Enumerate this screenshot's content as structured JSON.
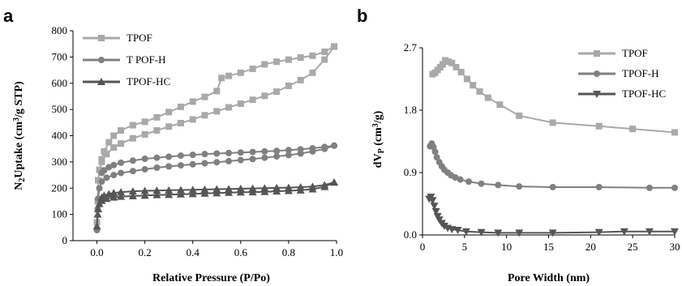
{
  "chart_data": [
    {
      "type": "line",
      "panel": "a",
      "xlabel": "Relative Pressure (P/Po)",
      "ylabel_parts": [
        "N",
        "2",
        "Uptake (cm",
        "3",
        "/g STP)"
      ],
      "xlim": [
        -0.1,
        1.0
      ],
      "ylim": [
        0,
        800
      ],
      "xticks": [
        "0.0",
        "0.2",
        "0.4",
        "0.6",
        "0.8",
        "1.0"
      ],
      "yticks": [
        "0",
        "100",
        "200",
        "300",
        "400",
        "500",
        "600",
        "700",
        "800"
      ],
      "legend_position": "top-left",
      "grid": false,
      "series": [
        {
          "name": "TPOF",
          "color": "#a9a9a9",
          "marker": "square",
          "adsorption": [
            [
              0.0,
              70
            ],
            [
              0.003,
              150
            ],
            [
              0.005,
              230
            ],
            [
              0.01,
              270
            ],
            [
              0.02,
              300
            ],
            [
              0.04,
              330
            ],
            [
              0.07,
              355
            ],
            [
              0.1,
              370
            ],
            [
              0.15,
              390
            ],
            [
              0.2,
              405
            ],
            [
              0.25,
              420
            ],
            [
              0.3,
              435
            ],
            [
              0.35,
              448
            ],
            [
              0.4,
              462
            ],
            [
              0.45,
              478
            ],
            [
              0.5,
              493
            ],
            [
              0.55,
              508
            ],
            [
              0.6,
              522
            ],
            [
              0.65,
              537
            ],
            [
              0.7,
              552
            ],
            [
              0.75,
              568
            ],
            [
              0.8,
              590
            ],
            [
              0.85,
              612
            ],
            [
              0.9,
              640
            ],
            [
              0.95,
              690
            ],
            [
              0.99,
              740
            ]
          ],
          "desorption": [
            [
              0.99,
              740
            ],
            [
              0.95,
              720
            ],
            [
              0.9,
              705
            ],
            [
              0.85,
              698
            ],
            [
              0.8,
              690
            ],
            [
              0.75,
              682
            ],
            [
              0.7,
              672
            ],
            [
              0.65,
              655
            ],
            [
              0.6,
              640
            ],
            [
              0.55,
              628
            ],
            [
              0.52,
              620
            ],
            [
              0.5,
              570
            ],
            [
              0.45,
              548
            ],
            [
              0.4,
              530
            ],
            [
              0.35,
              510
            ],
            [
              0.3,
              490
            ],
            [
              0.25,
              470
            ],
            [
              0.2,
              453
            ],
            [
              0.15,
              440
            ],
            [
              0.1,
              420
            ],
            [
              0.07,
              400
            ],
            [
              0.05,
              375
            ],
            [
              0.03,
              340
            ],
            [
              0.02,
              310
            ]
          ]
        },
        {
          "name": "T POF-H",
          "color": "#808080",
          "marker": "circle",
          "adsorption": [
            [
              0.0,
              40
            ],
            [
              0.003,
              120
            ],
            [
              0.005,
              160
            ],
            [
              0.01,
              200
            ],
            [
              0.02,
              225
            ],
            [
              0.04,
              240
            ],
            [
              0.07,
              250
            ],
            [
              0.1,
              258
            ],
            [
              0.15,
              265
            ],
            [
              0.2,
              272
            ],
            [
              0.25,
              278
            ],
            [
              0.3,
              283
            ],
            [
              0.35,
              287
            ],
            [
              0.4,
              291
            ],
            [
              0.45,
              295
            ],
            [
              0.5,
              299
            ],
            [
              0.55,
              303
            ],
            [
              0.6,
              307
            ],
            [
              0.65,
              311
            ],
            [
              0.7,
              316
            ],
            [
              0.75,
              321
            ],
            [
              0.8,
              326
            ],
            [
              0.85,
              332
            ],
            [
              0.9,
              340
            ],
            [
              0.95,
              350
            ],
            [
              0.99,
              362
            ]
          ],
          "desorption": [
            [
              0.99,
              362
            ],
            [
              0.95,
              357
            ],
            [
              0.9,
              352
            ],
            [
              0.85,
              348
            ],
            [
              0.8,
              345
            ],
            [
              0.75,
              342
            ],
            [
              0.7,
              340
            ],
            [
              0.65,
              338
            ],
            [
              0.6,
              336
            ],
            [
              0.55,
              334
            ],
            [
              0.5,
              332
            ],
            [
              0.45,
              330
            ],
            [
              0.4,
              327
            ],
            [
              0.35,
              324
            ],
            [
              0.3,
              320
            ],
            [
              0.25,
              316
            ],
            [
              0.2,
              312
            ],
            [
              0.15,
              305
            ],
            [
              0.1,
              297
            ],
            [
              0.07,
              288
            ],
            [
              0.05,
              280
            ],
            [
              0.03,
              268
            ],
            [
              0.02,
              258
            ]
          ]
        },
        {
          "name": "TPOF-HC",
          "color": "#555555",
          "marker": "triangle-up",
          "adsorption": [
            [
              0.0,
              55
            ],
            [
              0.003,
              100
            ],
            [
              0.005,
              120
            ],
            [
              0.01,
              140
            ],
            [
              0.02,
              152
            ],
            [
              0.04,
              160
            ],
            [
              0.07,
              165
            ],
            [
              0.1,
              168
            ],
            [
              0.15,
              170
            ],
            [
              0.2,
              172
            ],
            [
              0.25,
              174
            ],
            [
              0.3,
              175
            ],
            [
              0.35,
              177
            ],
            [
              0.4,
              178
            ],
            [
              0.45,
              180
            ],
            [
              0.5,
              181
            ],
            [
              0.55,
              183
            ],
            [
              0.6,
              184
            ],
            [
              0.65,
              185
            ],
            [
              0.7,
              186
            ],
            [
              0.75,
              188
            ],
            [
              0.8,
              190
            ],
            [
              0.85,
              192
            ],
            [
              0.9,
              196
            ],
            [
              0.95,
              205
            ],
            [
              0.99,
              222
            ]
          ],
          "desorption": [
            [
              0.99,
              222
            ],
            [
              0.95,
              212
            ],
            [
              0.9,
              206
            ],
            [
              0.85,
              204
            ],
            [
              0.8,
              202
            ],
            [
              0.75,
              201
            ],
            [
              0.7,
              200
            ],
            [
              0.65,
              199
            ],
            [
              0.6,
              198
            ],
            [
              0.55,
              197
            ],
            [
              0.5,
              196
            ],
            [
              0.45,
              195
            ],
            [
              0.4,
              194
            ],
            [
              0.35,
              193
            ],
            [
              0.3,
              192
            ],
            [
              0.25,
              191
            ],
            [
              0.2,
              190
            ],
            [
              0.15,
              188
            ],
            [
              0.1,
              185
            ],
            [
              0.07,
              182
            ],
            [
              0.05,
              178
            ],
            [
              0.03,
              172
            ],
            [
              0.02,
              165
            ]
          ]
        }
      ]
    },
    {
      "type": "line",
      "panel": "b",
      "xlabel": "Pore Width (nm)",
      "ylabel_parts": [
        "dV",
        "P",
        " (cm",
        "3",
        "/g)"
      ],
      "xlim": [
        0,
        30
      ],
      "ylim": [
        0,
        2.7
      ],
      "ytick_values": [
        0,
        0.9,
        1.8,
        2.7
      ],
      "xticks": [
        "0",
        "5",
        "10",
        "15",
        "20",
        "25",
        "30"
      ],
      "yticks": [
        "0.0",
        "0.9",
        "1.8",
        "2.7"
      ],
      "legend_position": "top-right",
      "grid": false,
      "series": [
        {
          "name": "TPOF",
          "color": "#a9a9a9",
          "marker": "square",
          "points": [
            [
              1.2,
              2.32
            ],
            [
              1.5,
              2.34
            ],
            [
              1.8,
              2.38
            ],
            [
              2.1,
              2.42
            ],
            [
              2.4,
              2.46
            ],
            [
              2.7,
              2.52
            ],
            [
              3.1,
              2.5
            ],
            [
              3.5,
              2.48
            ],
            [
              4.0,
              2.42
            ],
            [
              4.6,
              2.35
            ],
            [
              5.3,
              2.25
            ],
            [
              6.0,
              2.16
            ],
            [
              6.8,
              2.07
            ],
            [
              7.8,
              1.98
            ],
            [
              9.2,
              1.88
            ],
            [
              11.5,
              1.72
            ],
            [
              15.5,
              1.62
            ],
            [
              21,
              1.57
            ],
            [
              25,
              1.53
            ],
            [
              30,
              1.48
            ]
          ]
        },
        {
          "name": "TPOF-H",
          "color": "#808080",
          "marker": "circle",
          "points": [
            [
              0.9,
              1.28
            ],
            [
              1.1,
              1.32
            ],
            [
              1.3,
              1.27
            ],
            [
              1.5,
              1.2
            ],
            [
              1.7,
              1.12
            ],
            [
              2.0,
              1.05
            ],
            [
              2.3,
              0.99
            ],
            [
              2.6,
              0.94
            ],
            [
              3.0,
              0.9
            ],
            [
              3.4,
              0.86
            ],
            [
              3.9,
              0.83
            ],
            [
              4.5,
              0.8
            ],
            [
              5.5,
              0.77
            ],
            [
              7,
              0.74
            ],
            [
              9,
              0.72
            ],
            [
              11.5,
              0.7
            ],
            [
              15.5,
              0.69
            ],
            [
              21,
              0.69
            ],
            [
              27,
              0.68
            ],
            [
              30,
              0.68
            ]
          ]
        },
        {
          "name": "TPOF-HC",
          "color": "#555555",
          "marker": "triangle-down",
          "points": [
            [
              0.8,
              0.52
            ],
            [
              1.0,
              0.55
            ],
            [
              1.2,
              0.5
            ],
            [
              1.4,
              0.42
            ],
            [
              1.6,
              0.34
            ],
            [
              1.8,
              0.27
            ],
            [
              2.0,
              0.22
            ],
            [
              2.3,
              0.17
            ],
            [
              2.6,
              0.13
            ],
            [
              3.0,
              0.1
            ],
            [
              3.5,
              0.08
            ],
            [
              4.2,
              0.07
            ],
            [
              5.2,
              0.05
            ],
            [
              7,
              0.04
            ],
            [
              9,
              0.03
            ],
            [
              11.5,
              0.03
            ],
            [
              15.5,
              0.03
            ],
            [
              21,
              0.04
            ],
            [
              24,
              0.05
            ],
            [
              27,
              0.05
            ],
            [
              30,
              0.05
            ]
          ]
        }
      ]
    }
  ],
  "panels": {
    "a": "a",
    "b": "b"
  }
}
